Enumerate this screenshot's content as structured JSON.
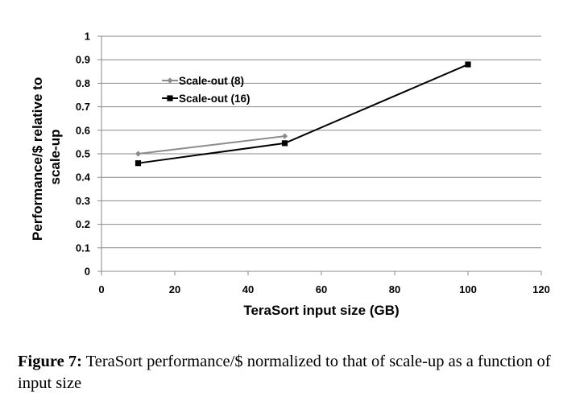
{
  "chart_data": {
    "type": "line",
    "xlabel": "TeraSort input size (GB)",
    "ylabel_lines": [
      "Performance/$ relative to",
      "scale-up"
    ],
    "xlim": [
      0,
      120
    ],
    "ylim": [
      0,
      1
    ],
    "x_ticks": [
      "0",
      "20",
      "40",
      "60",
      "80",
      "100",
      "120"
    ],
    "y_ticks": [
      "0",
      "0.1",
      "0.2",
      "0.3",
      "0.4",
      "0.5",
      "0.6",
      "0.7",
      "0.8",
      "0.9",
      "1"
    ],
    "grid": "horizontal",
    "legend_position": "upper-left",
    "series": [
      {
        "name": "Scale-out (8)",
        "color": "#8c8c8c",
        "marker": "diamond",
        "x": [
          10,
          50
        ],
        "y": [
          0.5,
          0.575
        ]
      },
      {
        "name": "Scale-out (16)",
        "color": "#000000",
        "marker": "square",
        "x": [
          10,
          50,
          100
        ],
        "y": [
          0.46,
          0.545,
          0.88
        ]
      }
    ]
  },
  "caption": {
    "label": "Figure 7:",
    "text": " TeraSort performance/$ normalized to that of scale-up as a function of input size"
  }
}
